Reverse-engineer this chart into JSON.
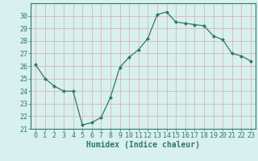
{
  "x": [
    0,
    1,
    2,
    3,
    4,
    5,
    6,
    7,
    8,
    9,
    10,
    11,
    12,
    13,
    14,
    15,
    16,
    17,
    18,
    19,
    20,
    21,
    22,
    23
  ],
  "y": [
    26.1,
    25.0,
    24.4,
    24.0,
    24.0,
    21.3,
    21.5,
    21.9,
    23.5,
    25.9,
    26.7,
    27.3,
    28.2,
    30.1,
    30.3,
    29.5,
    29.4,
    29.3,
    29.2,
    28.4,
    28.1,
    27.0,
    26.8,
    26.4
  ],
  "line_color": "#2d7a68",
  "marker": "D",
  "marker_size": 2.0,
  "bg_color": "#d8f0ee",
  "grid_color": "#c0dcd8",
  "axis_color": "#2d7a68",
  "xlabel": "Humidex (Indice chaleur)",
  "xlabel_fontsize": 7.0,
  "tick_fontsize": 6.0,
  "ylim": [
    21,
    31
  ],
  "xlim": [
    -0.5,
    23.5
  ],
  "yticks": [
    21,
    22,
    23,
    24,
    25,
    26,
    27,
    28,
    29,
    30
  ],
  "xticks": [
    0,
    1,
    2,
    3,
    4,
    5,
    6,
    7,
    8,
    9,
    10,
    11,
    12,
    13,
    14,
    15,
    16,
    17,
    18,
    19,
    20,
    21,
    22,
    23
  ]
}
